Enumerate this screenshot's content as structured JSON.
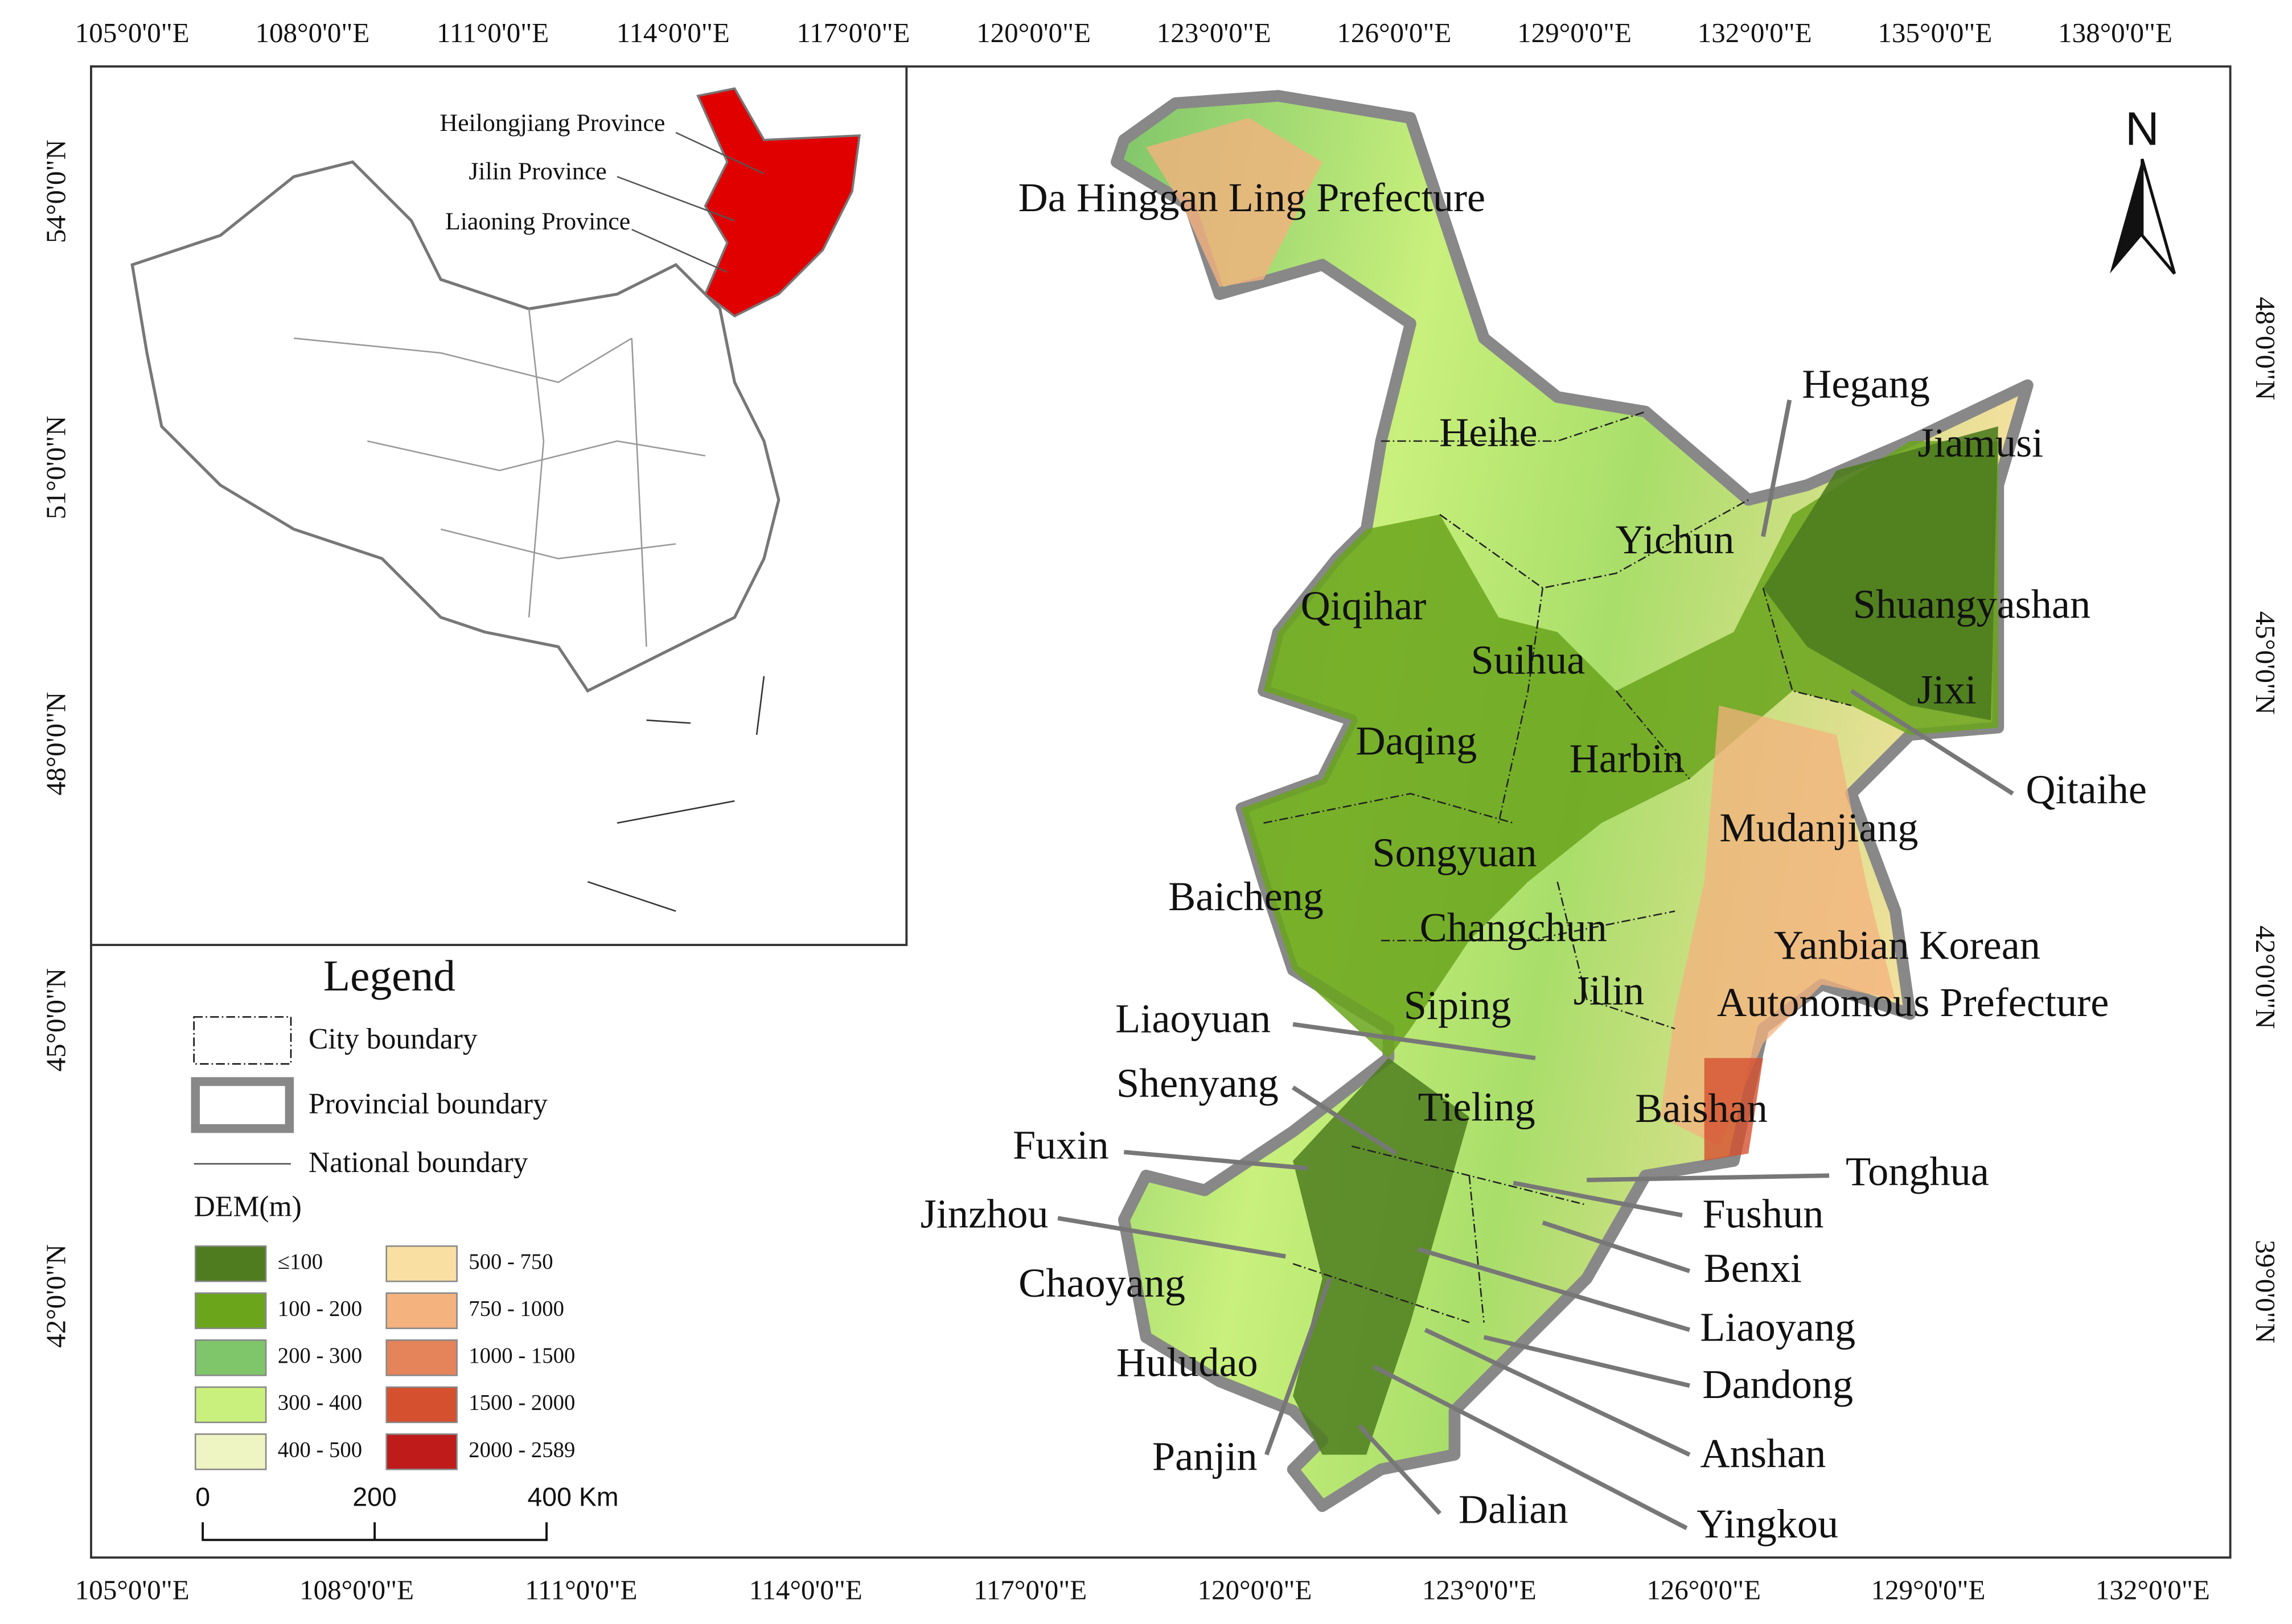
{
  "top_axis": [
    "105°0'0\"E",
    "108°0'0\"E",
    "111°0'0\"E",
    "114°0'0\"E",
    "117°0'0\"E",
    "120°0'0\"E",
    "123°0'0\"E",
    "126°0'0\"E",
    "129°0'0\"E",
    "132°0'0\"E",
    "135°0'0\"E",
    "138°0'0\"E"
  ],
  "bottom_axis": [
    "105°0'0\"E",
    "108°0'0\"E",
    "111°0'0\"E",
    "114°0'0\"E",
    "117°0'0\"E",
    "120°0'0\"E",
    "123°0'0\"E",
    "126°0'0\"E",
    "129°0'0\"E",
    "132°0'0\"E"
  ],
  "left_axis": [
    "54°0'0\"N",
    "51°0'0\"N",
    "48°0'0\"N",
    "45°0'0\"N",
    "42°0'0\"N"
  ],
  "right_axis": [
    "48°0'0\"N",
    "45°0'0\"N",
    "42°0'0\"N",
    "39°0'0\"N"
  ],
  "inset": {
    "labels": [
      "Heilongjiang Province",
      "Jilin Province",
      "Liaoning Province"
    ]
  },
  "north": "N",
  "legend": {
    "title": "Legend",
    "boundaries": [
      "City boundary",
      "Provincial boundary",
      "National boundary"
    ],
    "dem_title": "DEM(m)",
    "dem_classes": [
      {
        "label": "≤100",
        "color": "#4e7c1f"
      },
      {
        "label": "100 - 200",
        "color": "#6aa51c"
      },
      {
        "label": "200 - 300",
        "color": "#7fc56a"
      },
      {
        "label": "300 - 400",
        "color": "#c9f07c"
      },
      {
        "label": "400 - 500",
        "color": "#eef4c2"
      },
      {
        "label": "500 - 750",
        "color": "#f9e0a2"
      },
      {
        "label": "750 - 1000",
        "color": "#f4b27e"
      },
      {
        "label": "1000 - 1500",
        "color": "#e5835b"
      },
      {
        "label": "1500 - 2000",
        "color": "#d5502f"
      },
      {
        "label": "2000 - 2589",
        "color": "#bf1b1b"
      }
    ]
  },
  "scale_bar": [
    "0",
    "200",
    "400 Km"
  ],
  "cities": [
    "Da Hinggan Ling Prefecture",
    "Hegang",
    "Jiamusi",
    "Heihe",
    "Yichun",
    "Qiqihar",
    "Shuangyashan",
    "Suihua",
    "Jixi",
    "Daqing",
    "Harbin",
    "Qitaihe",
    "Mudanjiang",
    "Songyuan",
    "Baicheng",
    "Changchun",
    "Yanbian Korean",
    "Autonomous Prefecture",
    "Jilin",
    "Siping",
    "Liaoyuan",
    "Shenyang",
    "Tieling",
    "Baishan",
    "Fuxin",
    "Tonghua",
    "Fushun",
    "Jinzhou",
    "Benxi",
    "Chaoyang",
    "Liaoyang",
    "Huludao",
    "Dandong",
    "Anshan",
    "Panjin",
    "Dalian",
    "Yingkou"
  ]
}
